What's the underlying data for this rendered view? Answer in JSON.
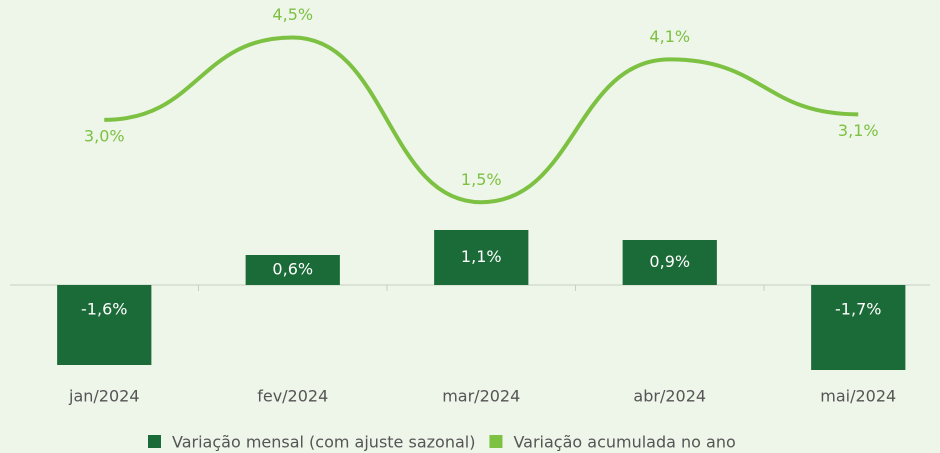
{
  "chart_data": {
    "type": "bar",
    "categories": [
      "jan/2024",
      "fev/2024",
      "mar/2024",
      "abr/2024",
      "mai/2024"
    ],
    "ylim": [
      -2.3,
      5.5
    ],
    "y2lim": [
      -2.1,
      5.0
    ],
    "legend": "bottom",
    "series": [
      {
        "name": "Variação mensal (com ajuste sazonal)",
        "type": "bar",
        "color": "#1b6b38",
        "values": [
          -1.6,
          0.6,
          1.1,
          0.9,
          -1.7
        ],
        "value_labels": [
          "-1,6%",
          "0,6%",
          "1,1%",
          "0,9%",
          "-1,7%"
        ]
      },
      {
        "name": "Variação acumulada no ano",
        "type": "line",
        "axis": "y2",
        "color": "#7cc142",
        "values": [
          3.0,
          4.5,
          1.5,
          4.1,
          3.1
        ],
        "value_labels": [
          "3,0%",
          "4,5%",
          "1,5%",
          "4,1%",
          "3,1%"
        ]
      }
    ]
  }
}
